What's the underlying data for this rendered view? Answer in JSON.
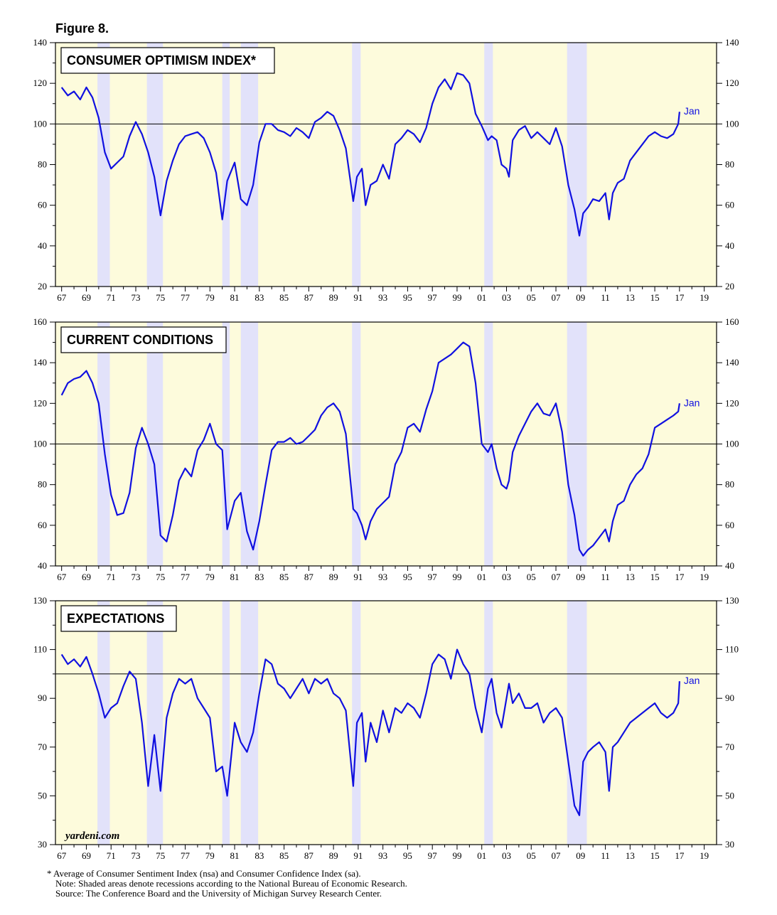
{
  "figure_title": "Figure 8.",
  "watermark": "yardeni.com",
  "footnotes": {
    "line1": "* Average of Consumer Sentiment Index (nsa) and Consumer Confidence Index (sa).",
    "line2": "Note: Shaded areas denote recessions according to the National Bureau of Economic Research.",
    "line3": "Source: The Conference Board and the University of Michigan Survey Research Center."
  },
  "colors": {
    "plot_bg": "#fdfbdc",
    "recession": "#e2e2fa",
    "line": "#1010e0",
    "axis": "#000000"
  },
  "x_ticks": [
    "67",
    "69",
    "71",
    "73",
    "75",
    "77",
    "79",
    "81",
    "83",
    "85",
    "87",
    "89",
    "91",
    "93",
    "95",
    "97",
    "99",
    "01",
    "03",
    "05",
    "07",
    "09",
    "11",
    "13",
    "15",
    "17",
    "19"
  ],
  "recessions": [
    [
      1969.9,
      1970.9
    ],
    [
      1973.9,
      1975.2
    ],
    [
      1980.0,
      1980.6
    ],
    [
      1981.5,
      1982.9
    ],
    [
      1990.5,
      1991.2
    ],
    [
      2001.2,
      2001.9
    ],
    [
      2007.9,
      2009.5
    ]
  ],
  "chart_data": [
    {
      "type": "line",
      "title": "CONSUMER OPTIMISM INDEX*",
      "end_label": "Jan",
      "xlim": [
        1966.5,
        2020
      ],
      "ylim": [
        20,
        140
      ],
      "y_ticks": [
        "20",
        "40",
        "60",
        "80",
        "100",
        "120",
        "140"
      ],
      "reference_line": 100,
      "x": [
        1967,
        1967.5,
        1968,
        1968.5,
        1969,
        1969.5,
        1970,
        1970.5,
        1971,
        1971.5,
        1972,
        1972.5,
        1973,
        1973.5,
        1974,
        1974.5,
        1975,
        1975.5,
        1976,
        1976.5,
        1977,
        1977.5,
        1978,
        1978.5,
        1979,
        1979.5,
        1980,
        1980.4,
        1981,
        1981.5,
        1982,
        1982.5,
        1983,
        1983.5,
        1984,
        1984.5,
        1985,
        1985.5,
        1986,
        1986.5,
        1987,
        1987.5,
        1988,
        1988.5,
        1989,
        1989.5,
        1990,
        1990.6,
        1990.9,
        1991.3,
        1991.6,
        1992,
        1992.5,
        1993,
        1993.5,
        1994,
        1994.5,
        1995,
        1995.5,
        1996,
        1996.5,
        1997,
        1997.5,
        1998,
        1998.5,
        1999,
        1999.5,
        2000,
        2000.5,
        2001,
        2001.5,
        2001.8,
        2002.2,
        2002.6,
        2003,
        2003.2,
        2003.5,
        2004,
        2004.5,
        2005,
        2005.5,
        2006,
        2006.5,
        2007,
        2007.5,
        2008,
        2008.5,
        2008.9,
        2009.2,
        2009.6,
        2010,
        2010.5,
        2011,
        2011.3,
        2011.6,
        2012,
        2012.5,
        2013,
        2013.5,
        2014,
        2014.5,
        2015,
        2015.5,
        2016,
        2016.5,
        2016.9,
        2017.0
      ],
      "values": [
        118,
        114,
        116,
        112,
        118,
        113,
        103,
        86,
        78,
        81,
        84,
        94,
        101,
        95,
        86,
        74,
        55,
        72,
        82,
        90,
        94,
        95,
        96,
        93,
        86,
        76,
        53,
        72,
        81,
        63,
        60,
        70,
        91,
        100,
        100,
        97,
        96,
        94,
        98,
        96,
        93,
        101,
        103,
        106,
        104,
        97,
        88,
        62,
        74,
        78,
        60,
        70,
        72,
        80,
        73,
        90,
        93,
        97,
        95,
        91,
        98,
        110,
        118,
        122,
        117,
        125,
        124,
        120,
        105,
        99,
        92,
        94,
        92,
        80,
        78,
        74,
        92,
        97,
        99,
        93,
        96,
        93,
        90,
        98,
        89,
        70,
        58,
        45,
        56,
        59,
        63,
        62,
        66,
        53,
        66,
        71,
        73,
        82,
        86,
        90,
        94,
        96,
        94,
        93,
        95,
        100,
        106
      ],
      "series": [
        {
          "name": "Consumer Optimism Index"
        }
      ]
    },
    {
      "type": "line",
      "title": "CURRENT CONDITIONS",
      "end_label": "Jan",
      "xlim": [
        1966.5,
        2020
      ],
      "ylim": [
        40,
        160
      ],
      "y_ticks": [
        "40",
        "60",
        "80",
        "100",
        "120",
        "140",
        "160"
      ],
      "reference_line": 100,
      "x": [
        1967,
        1967.5,
        1968,
        1968.5,
        1969,
        1969.5,
        1970,
        1970.5,
        1971,
        1971.5,
        1972,
        1972.5,
        1973,
        1973.5,
        1974,
        1974.5,
        1975,
        1975.5,
        1976,
        1976.5,
        1977,
        1977.5,
        1978,
        1978.5,
        1979,
        1979.5,
        1980,
        1980.4,
        1981,
        1981.5,
        1982,
        1982.5,
        1983,
        1983.5,
        1984,
        1984.5,
        1985,
        1985.5,
        1986,
        1986.5,
        1987,
        1987.5,
        1988,
        1988.5,
        1989,
        1989.5,
        1990,
        1990.6,
        1990.9,
        1991.3,
        1991.6,
        1992,
        1992.5,
        1993,
        1993.5,
        1994,
        1994.5,
        1995,
        1995.5,
        1996,
        1996.5,
        1997,
        1997.5,
        1998,
        1998.5,
        1999,
        1999.5,
        2000,
        2000.5,
        2001,
        2001.5,
        2001.8,
        2002.2,
        2002.6,
        2003,
        2003.2,
        2003.5,
        2004,
        2004.5,
        2005,
        2005.5,
        2006,
        2006.5,
        2007,
        2007.5,
        2008,
        2008.5,
        2008.9,
        2009.2,
        2009.6,
        2010,
        2010.5,
        2011,
        2011.3,
        2011.6,
        2012,
        2012.5,
        2013,
        2013.5,
        2014,
        2014.5,
        2015,
        2015.5,
        2016,
        2016.5,
        2016.9,
        2017.0
      ],
      "values": [
        124,
        130,
        132,
        133,
        136,
        130,
        120,
        95,
        75,
        65,
        66,
        76,
        98,
        108,
        100,
        90,
        55,
        52,
        65,
        82,
        88,
        84,
        97,
        102,
        110,
        100,
        97,
        58,
        72,
        76,
        57,
        48,
        62,
        80,
        97,
        101,
        101,
        103,
        100,
        101,
        104,
        107,
        114,
        118,
        120,
        116,
        105,
        68,
        66,
        60,
        53,
        62,
        68,
        71,
        74,
        90,
        96,
        108,
        110,
        106,
        117,
        126,
        140,
        142,
        144,
        147,
        150,
        148,
        130,
        100,
        96,
        100,
        88,
        80,
        78,
        82,
        96,
        104,
        110,
        116,
        120,
        115,
        114,
        120,
        106,
        80,
        65,
        48,
        45,
        48,
        50,
        54,
        58,
        52,
        62,
        70,
        72,
        80,
        85,
        88,
        95,
        108,
        110,
        112,
        114,
        116,
        120
      ],
      "series": [
        {
          "name": "Current Conditions"
        }
      ]
    },
    {
      "type": "line",
      "title": "EXPECTATIONS",
      "end_label": "Jan",
      "xlim": [
        1966.5,
        2020
      ],
      "ylim": [
        30,
        130
      ],
      "y_ticks": [
        "30",
        "50",
        "70",
        "90",
        "110",
        "130"
      ],
      "reference_line": 100,
      "x": [
        1967,
        1967.5,
        1968,
        1968.5,
        1969,
        1969.5,
        1970,
        1970.5,
        1971,
        1971.5,
        1972,
        1972.5,
        1973,
        1973.5,
        1974,
        1974.5,
        1975,
        1975.5,
        1976,
        1976.5,
        1977,
        1977.5,
        1978,
        1978.5,
        1979,
        1979.5,
        1980,
        1980.4,
        1981,
        1981.5,
        1982,
        1982.5,
        1983,
        1983.5,
        1984,
        1984.5,
        1985,
        1985.5,
        1986,
        1986.5,
        1987,
        1987.5,
        1988,
        1988.5,
        1989,
        1989.5,
        1990,
        1990.6,
        1990.9,
        1991.3,
        1991.6,
        1992,
        1992.5,
        1993,
        1993.5,
        1994,
        1994.5,
        1995,
        1995.5,
        1996,
        1996.5,
        1997,
        1997.5,
        1998,
        1998.5,
        1999,
        1999.5,
        2000,
        2000.5,
        2001,
        2001.5,
        2001.8,
        2002.2,
        2002.6,
        2003,
        2003.2,
        2003.5,
        2004,
        2004.5,
        2005,
        2005.5,
        2006,
        2006.5,
        2007,
        2007.5,
        2008,
        2008.5,
        2008.9,
        2009.2,
        2009.6,
        2010,
        2010.5,
        2011,
        2011.3,
        2011.6,
        2012,
        2012.5,
        2013,
        2013.5,
        2014,
        2014.5,
        2015,
        2015.5,
        2016,
        2016.5,
        2016.9,
        2017.0
      ],
      "values": [
        108,
        104,
        106,
        103,
        107,
        100,
        92,
        82,
        86,
        88,
        95,
        101,
        98,
        80,
        54,
        75,
        52,
        82,
        92,
        98,
        96,
        98,
        90,
        86,
        82,
        60,
        62,
        50,
        80,
        72,
        68,
        76,
        92,
        106,
        104,
        96,
        94,
        90,
        94,
        98,
        92,
        98,
        96,
        98,
        92,
        90,
        85,
        54,
        80,
        84,
        64,
        80,
        72,
        85,
        76,
        86,
        84,
        88,
        86,
        82,
        92,
        104,
        108,
        106,
        98,
        110,
        104,
        100,
        86,
        76,
        94,
        98,
        84,
        78,
        90,
        96,
        88,
        92,
        86,
        86,
        88,
        80,
        84,
        86,
        82,
        64,
        46,
        42,
        64,
        68,
        70,
        72,
        68,
        52,
        70,
        72,
        76,
        80,
        82,
        84,
        86,
        88,
        84,
        82,
        84,
        88,
        97
      ],
      "series": [
        {
          "name": "Expectations"
        }
      ]
    }
  ]
}
